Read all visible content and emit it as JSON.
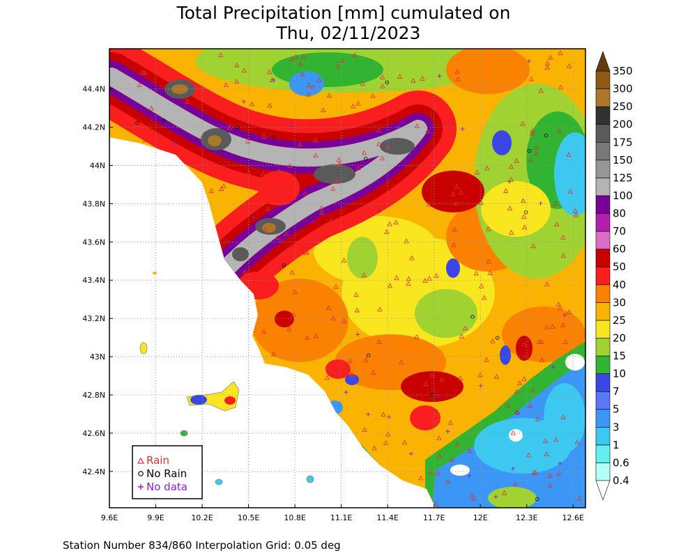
{
  "title": [
    "Total Precipitation [mm] cumulated on",
    "Thu, 02/11/2023"
  ],
  "map": {
    "xlim": [
      9.6,
      12.68
    ],
    "ylim": [
      42.21,
      44.61
    ],
    "xticks": [
      {
        "value": 9.6,
        "label": "9.6E"
      },
      {
        "value": 9.9,
        "label": "9.9E"
      },
      {
        "value": 10.2,
        "label": "10.2E"
      },
      {
        "value": 10.5,
        "label": "10.5E"
      },
      {
        "value": 10.8,
        "label": "10.8E"
      },
      {
        "value": 11.1,
        "label": "11.1E"
      },
      {
        "value": 11.4,
        "label": "11.4E"
      },
      {
        "value": 11.7,
        "label": "11.7E"
      },
      {
        "value": 12,
        "label": "12E"
      },
      {
        "value": 12.3,
        "label": "12.3E"
      },
      {
        "value": 12.6,
        "label": "12.6E"
      }
    ],
    "yticks": [
      {
        "value": 42.4,
        "label": "42.4N"
      },
      {
        "value": 42.6,
        "label": "42.6N"
      },
      {
        "value": 42.8,
        "label": "42.8N"
      },
      {
        "value": 43,
        "label": "43N"
      },
      {
        "value": 43.2,
        "label": "43.2N"
      },
      {
        "value": 43.4,
        "label": "43.4N"
      },
      {
        "value": 43.6,
        "label": "43.6N"
      },
      {
        "value": 43.8,
        "label": "43.8N"
      },
      {
        "value": 44,
        "label": "44N"
      },
      {
        "value": 44.2,
        "label": "44.2N"
      },
      {
        "value": 44.4,
        "label": "44.4N"
      }
    ],
    "grid": true
  },
  "colorbar": {
    "levels": [
      0.4,
      0.6,
      1,
      3,
      5,
      7,
      10,
      15,
      20,
      25,
      30,
      40,
      50,
      60,
      70,
      80,
      100,
      125,
      150,
      175,
      200,
      250,
      300,
      350
    ],
    "colors": [
      "#b4fff8",
      "#64f0f0",
      "#3cc8f0",
      "#3c96f5",
      "#5a78f5",
      "#3c46e6",
      "#32b432",
      "#a0d232",
      "#fae61e",
      "#fab400",
      "#fa8200",
      "#fa1e1e",
      "#c80000",
      "#dc6ec8",
      "#b41eaa",
      "#780096",
      "#b4b4b4",
      "#969696",
      "#787878",
      "#5a5a5a",
      "#323232",
      "#aa7828",
      "#8c5a14"
    ],
    "under_color": "#ffffff",
    "over_color": "#643c0a"
  },
  "legend": [
    {
      "label": "Rain",
      "color": "#e03030"
    },
    {
      "label": "No Rain",
      "color": "#000000"
    },
    {
      "label": "No data",
      "color": "#8c1ec8"
    }
  ],
  "footer": "Station Number 834/860 Interpolation Grid: 0.05 deg"
}
